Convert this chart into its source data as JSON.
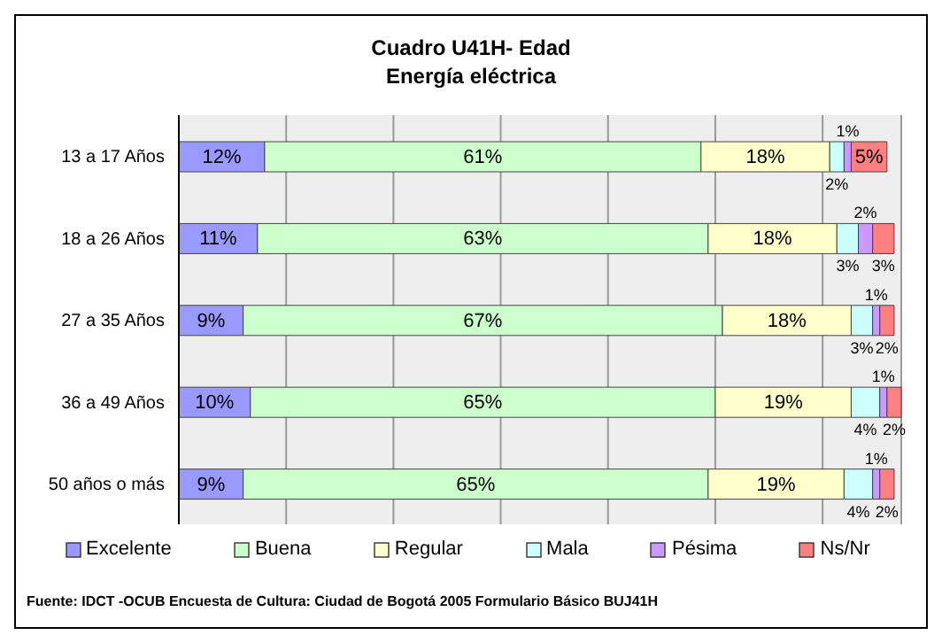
{
  "chart_data": {
    "type": "bar",
    "orientation": "horizontal",
    "stacked": true,
    "title": "Cuadro U41H- Edad",
    "subtitle": "Energía eléctrica",
    "categories": [
      "13 a 17 Años",
      "18 a 26 Años",
      "27 a 35 Años",
      "36 a 49 Años",
      "50 años o más"
    ],
    "series": [
      {
        "name": "Excelente",
        "color": "#9999ff",
        "values": [
          12,
          11,
          9,
          10,
          9
        ],
        "value_labels": [
          "12%",
          "11%",
          "9%",
          "10%",
          "9%"
        ]
      },
      {
        "name": "Buena",
        "color": "#ccffcc",
        "values": [
          61,
          63,
          67,
          65,
          65
        ],
        "value_labels": [
          "61%",
          "63%",
          "67%",
          "65%",
          "65%"
        ]
      },
      {
        "name": "Regular",
        "color": "#ffffcc",
        "values": [
          18,
          18,
          18,
          19,
          19
        ],
        "value_labels": [
          "18%",
          "18%",
          "18%",
          "19%",
          "19%"
        ]
      },
      {
        "name": "Mala",
        "color": "#ccffff",
        "values": [
          2,
          3,
          3,
          4,
          4
        ],
        "value_labels": [
          "2%",
          "3%",
          "3%",
          "4%",
          "4%"
        ]
      },
      {
        "name": "Pésima",
        "color": "#cc99ff",
        "values": [
          1,
          2,
          1,
          1,
          1
        ],
        "value_labels": [
          "1%",
          "2%",
          "1%",
          "1%",
          "1%"
        ]
      },
      {
        "name": "Ns/Nr",
        "color": "#ff8080",
        "values": [
          5,
          3,
          2,
          2,
          2
        ],
        "value_labels": [
          "5%",
          "3%",
          "2%",
          "2%",
          "2%"
        ]
      }
    ],
    "grid": "x",
    "legend": "bottom",
    "annotations": [
      "Fuente: IDCT -OCUB Encuesta de Cultura: Ciudad de Bogotá 2005 Formulario Básico BUJ41H"
    ]
  }
}
